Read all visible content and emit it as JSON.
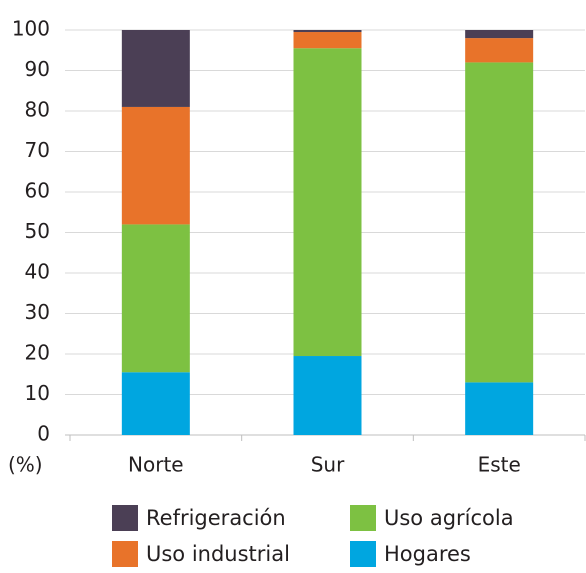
{
  "chart_data": {
    "type": "stacked_bar",
    "y_label": "(%)",
    "categories": [
      "Norte",
      "Sur",
      "Este"
    ],
    "series": [
      {
        "name": "Hogares",
        "color": "#00a6e0",
        "values": [
          15.5,
          19.5,
          13
        ]
      },
      {
        "name": "Uso agrícola",
        "color": "#7dc142",
        "values": [
          36.5,
          76,
          79
        ]
      },
      {
        "name": "Uso industrial",
        "color": "#e8732a",
        "values": [
          29,
          4,
          6
        ]
      },
      {
        "name": "Refrigeración",
        "color": "#4b3f55",
        "values": [
          19,
          0.5,
          2
        ]
      }
    ],
    "ylim": [
      0,
      100
    ],
    "yticks": [
      0,
      10,
      20,
      30,
      40,
      50,
      60,
      70,
      80,
      90,
      100
    ],
    "grid": true
  }
}
